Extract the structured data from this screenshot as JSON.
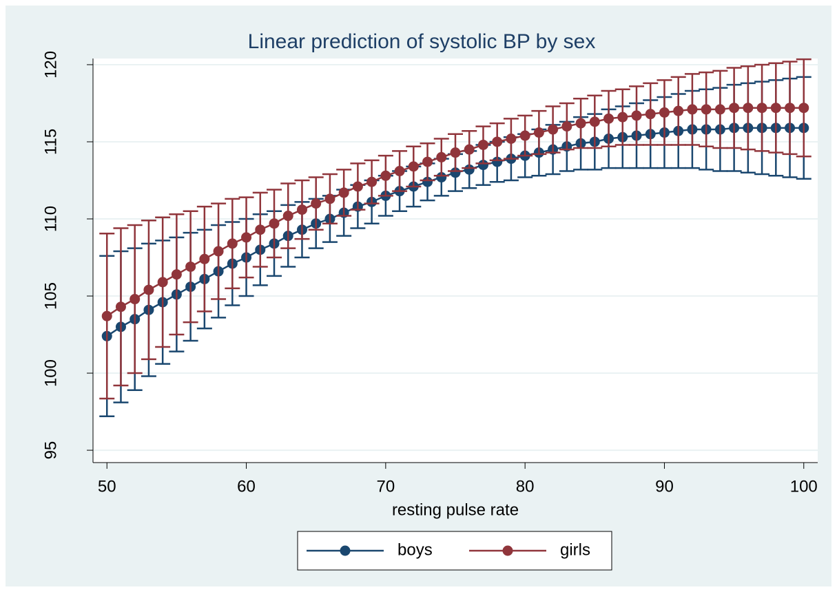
{
  "chart_data": {
    "type": "line",
    "title": "Linear prediction of systolic BP by sex",
    "xlabel": "resting pulse rate",
    "x": [
      50,
      51,
      52,
      53,
      54,
      55,
      56,
      57,
      58,
      59,
      60,
      61,
      62,
      63,
      64,
      65,
      66,
      67,
      68,
      69,
      70,
      71,
      72,
      73,
      74,
      75,
      76,
      77,
      78,
      79,
      80,
      81,
      82,
      83,
      84,
      85,
      86,
      87,
      88,
      89,
      90,
      91,
      92,
      93,
      94,
      95,
      96,
      97,
      98,
      99,
      100
    ],
    "series": [
      {
        "name": "boys",
        "color": "#1a476f",
        "values": [
          102.4,
          103.0,
          103.5,
          104.1,
          104.6,
          105.1,
          105.6,
          106.1,
          106.6,
          107.1,
          107.5,
          108.0,
          108.4,
          108.9,
          109.3,
          109.7,
          110.0,
          110.4,
          110.8,
          111.1,
          111.5,
          111.8,
          112.1,
          112.4,
          112.7,
          113.0,
          113.2,
          113.5,
          113.7,
          113.9,
          114.1,
          114.3,
          114.5,
          114.7,
          114.9,
          115.0,
          115.2,
          115.3,
          115.4,
          115.5,
          115.6,
          115.7,
          115.8,
          115.8,
          115.8,
          115.9,
          115.9,
          115.9,
          115.9,
          115.9,
          115.9
        ],
        "errors": [
          5.2,
          4.9,
          4.6,
          4.3,
          4.0,
          3.7,
          3.5,
          3.2,
          3.0,
          2.7,
          2.5,
          2.3,
          2.1,
          2.0,
          1.8,
          1.6,
          1.5,
          1.5,
          1.4,
          1.4,
          1.3,
          1.3,
          1.3,
          1.2,
          1.2,
          1.2,
          1.2,
          1.3,
          1.3,
          1.4,
          1.4,
          1.5,
          1.6,
          1.6,
          1.7,
          1.8,
          1.9,
          2.0,
          2.1,
          2.2,
          2.3,
          2.4,
          2.5,
          2.6,
          2.7,
          2.8,
          2.9,
          3.0,
          3.1,
          3.2,
          3.3
        ]
      },
      {
        "name": "girls",
        "color": "#90353b",
        "values": [
          103.7,
          104.3,
          104.8,
          105.4,
          105.9,
          106.4,
          106.9,
          107.4,
          107.9,
          108.4,
          108.8,
          109.3,
          109.7,
          110.2,
          110.6,
          111.0,
          111.3,
          111.7,
          112.1,
          112.4,
          112.8,
          113.1,
          113.4,
          113.7,
          114.0,
          114.3,
          114.5,
          114.8,
          115.0,
          115.2,
          115.4,
          115.6,
          115.8,
          116.0,
          116.2,
          116.3,
          116.5,
          116.6,
          116.7,
          116.8,
          116.9,
          117.0,
          117.1,
          117.1,
          117.1,
          117.2,
          117.2,
          117.2,
          117.2,
          117.2,
          117.2
        ],
        "errors": [
          5.35,
          5.1,
          4.8,
          4.5,
          4.2,
          3.9,
          3.6,
          3.4,
          3.1,
          2.9,
          2.6,
          2.4,
          2.2,
          2.1,
          1.9,
          1.7,
          1.6,
          1.5,
          1.5,
          1.4,
          1.3,
          1.3,
          1.3,
          1.2,
          1.2,
          1.2,
          1.2,
          1.2,
          1.2,
          1.3,
          1.3,
          1.4,
          1.5,
          1.5,
          1.6,
          1.7,
          1.8,
          1.8,
          1.9,
          2.0,
          2.1,
          2.2,
          2.3,
          2.4,
          2.5,
          2.6,
          2.7,
          2.8,
          2.9,
          3.0,
          3.15
        ]
      }
    ],
    "xlim": [
      49,
      101
    ],
    "ylim": [
      94.2,
      120.4
    ],
    "xticks": [
      50,
      60,
      70,
      80,
      90,
      100
    ],
    "yticks": [
      95,
      100,
      105,
      110,
      115,
      120
    ],
    "grid": true,
    "legend": "bottom"
  }
}
